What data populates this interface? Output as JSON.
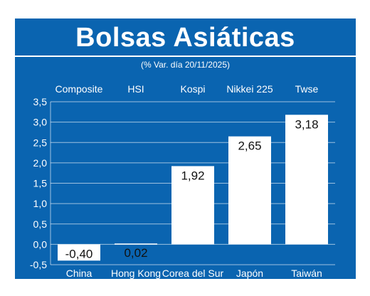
{
  "title": "Bolsas Asiáticas",
  "subtitle": "(% Var. día  20/11/2025)",
  "colors": {
    "panel": "#0a64b0",
    "bar": "#ffffff",
    "text": "#ffffff",
    "value_label": "#111111"
  },
  "chart_data": {
    "type": "bar",
    "title": "Bolsas Asiáticas",
    "subtitle": "(% Var. día  20/11/2025)",
    "categories": [
      "China",
      "Hong Kong",
      "Corea del Sur",
      "Japón",
      "Taiwán"
    ],
    "index_names": [
      "Composite",
      "HSI",
      "Kospi",
      "Nikkei 225",
      "Twse"
    ],
    "values": [
      -0.4,
      0.02,
      1.92,
      2.65,
      3.18
    ],
    "value_labels": [
      "-0,40",
      "0,02",
      "1,92",
      "2,65",
      "3,18"
    ],
    "ylim": [
      -0.5,
      3.5
    ],
    "yticks": [
      3.5,
      3.0,
      2.5,
      2.0,
      1.5,
      1.0,
      0.5,
      0.0,
      -0.5
    ],
    "ytick_labels": [
      "3,5",
      "3,0",
      "2,5",
      "2,0",
      "1,5",
      "1,0",
      "0,5",
      "0,0",
      "-0,5"
    ],
    "grid": true,
    "xlabel": "",
    "ylabel": ""
  }
}
